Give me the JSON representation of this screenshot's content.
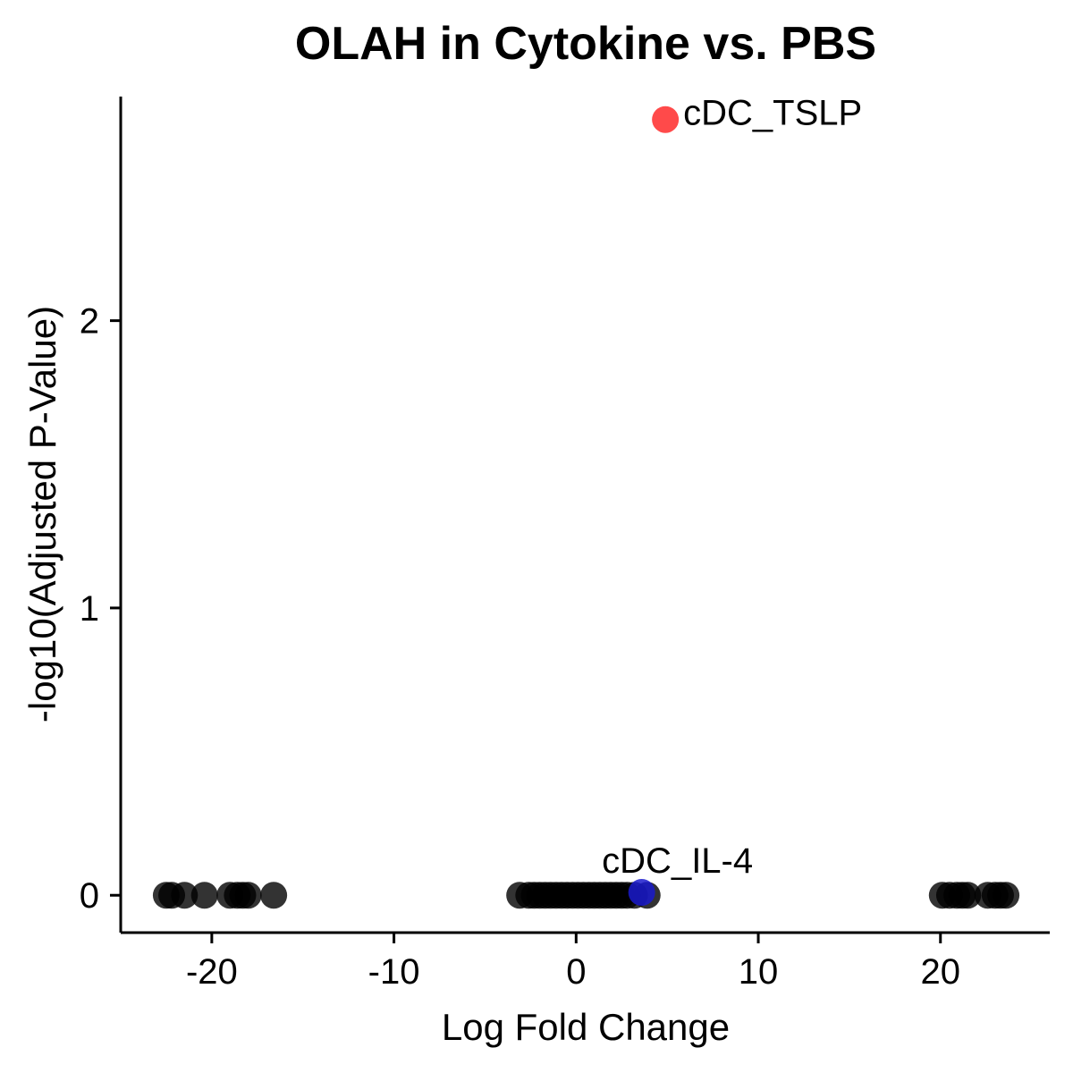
{
  "chart_data": {
    "type": "scatter",
    "title": "OLAH in Cytokine vs. PBS",
    "xlabel": "Log Fold Change",
    "ylabel": "-log10(Adjusted P-Value)",
    "xlim": [
      -25,
      26
    ],
    "ylim": [
      -0.13,
      2.78
    ],
    "xticks": [
      -20,
      -10,
      0,
      10,
      20
    ],
    "xtick_labels": [
      "-20",
      "-10",
      "0",
      "10",
      "20"
    ],
    "yticks": [
      0,
      1,
      2
    ],
    "ytick_labels": [
      "0",
      "1",
      "2"
    ],
    "grid": false,
    "legend": "none",
    "colors": {
      "significant_up": "#ff2a2a",
      "significant_down": "#1a1acc",
      "not_significant": "#000000"
    },
    "highlighted": [
      {
        "label": "cDC_TSLP",
        "x": 4.9,
        "y": 2.7,
        "group": "significant_up"
      },
      {
        "label": "cDC_IL-4",
        "x": 3.6,
        "y": 0.01,
        "group": "significant_down"
      }
    ],
    "points": [
      {
        "x": -22.5,
        "y": 0
      },
      {
        "x": -22.2,
        "y": 0
      },
      {
        "x": -21.5,
        "y": 0
      },
      {
        "x": -20.4,
        "y": 0
      },
      {
        "x": -19.0,
        "y": 0
      },
      {
        "x": -18.6,
        "y": 0
      },
      {
        "x": -18.3,
        "y": 0
      },
      {
        "x": -18.0,
        "y": 0
      },
      {
        "x": -16.6,
        "y": 0
      },
      {
        "x": -3.1,
        "y": 0
      },
      {
        "x": -2.6,
        "y": 0
      },
      {
        "x": -2.3,
        "y": 0
      },
      {
        "x": -2.0,
        "y": 0
      },
      {
        "x": -1.7,
        "y": 0
      },
      {
        "x": -1.4,
        "y": 0
      },
      {
        "x": -1.1,
        "y": 0
      },
      {
        "x": -0.8,
        "y": 0
      },
      {
        "x": -0.5,
        "y": 0
      },
      {
        "x": -0.2,
        "y": 0
      },
      {
        "x": 0.1,
        "y": 0
      },
      {
        "x": 0.4,
        "y": 0
      },
      {
        "x": 0.7,
        "y": 0
      },
      {
        "x": 1.0,
        "y": 0
      },
      {
        "x": 1.3,
        "y": 0
      },
      {
        "x": 1.6,
        "y": 0
      },
      {
        "x": 1.9,
        "y": 0
      },
      {
        "x": 2.2,
        "y": 0
      },
      {
        "x": 2.5,
        "y": 0
      },
      {
        "x": 2.8,
        "y": 0
      },
      {
        "x": 3.2,
        "y": 0
      },
      {
        "x": 3.9,
        "y": 0
      },
      {
        "x": 20.1,
        "y": 0
      },
      {
        "x": 20.5,
        "y": 0
      },
      {
        "x": 20.9,
        "y": 0
      },
      {
        "x": 21.2,
        "y": 0
      },
      {
        "x": 21.5,
        "y": 0
      },
      {
        "x": 22.6,
        "y": 0
      },
      {
        "x": 23.0,
        "y": 0
      },
      {
        "x": 23.3,
        "y": 0
      },
      {
        "x": 23.6,
        "y": 0
      }
    ]
  }
}
